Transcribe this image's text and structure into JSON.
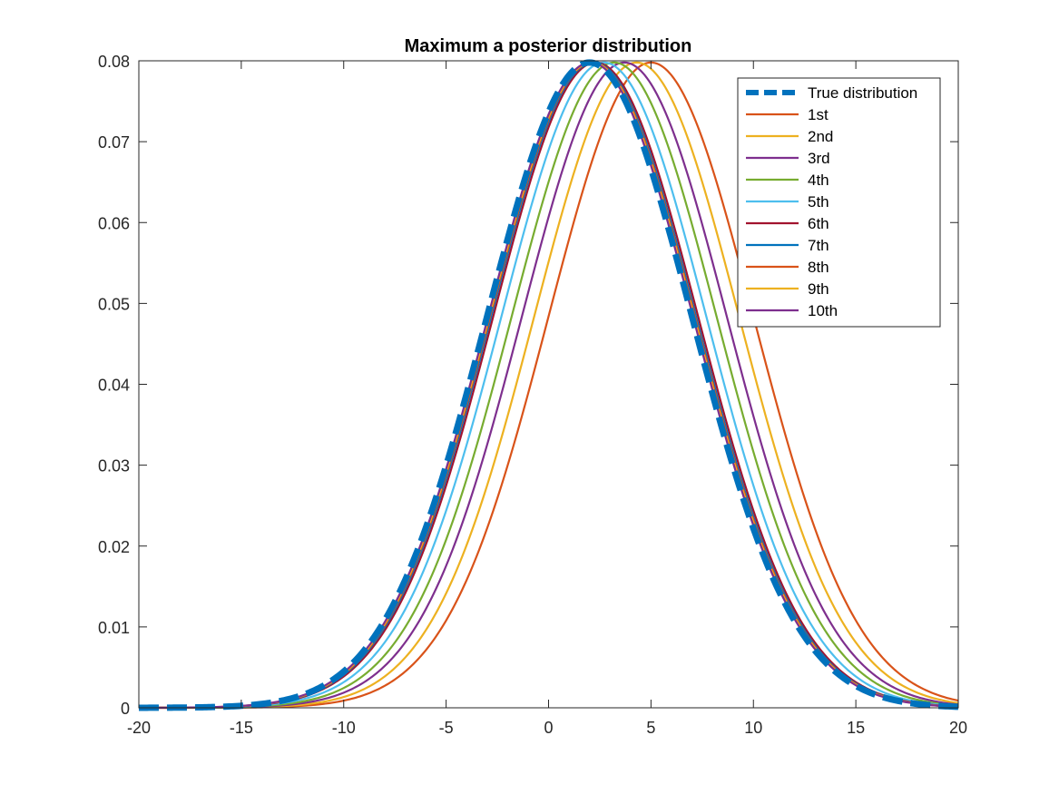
{
  "chart_data": {
    "type": "line",
    "title": "Maximum a posterior distribution",
    "xlabel": "",
    "ylabel": "",
    "xlim": [
      -20,
      20
    ],
    "ylim": [
      0,
      0.08
    ],
    "xticks": [
      -20,
      -15,
      -10,
      -5,
      0,
      5,
      10,
      15,
      20
    ],
    "xtick_labels": [
      "-20",
      "-15",
      "-10",
      "-5",
      "0",
      "5",
      "10",
      "15",
      "20"
    ],
    "yticks": [
      0,
      0.01,
      0.02,
      0.03,
      0.04,
      0.05,
      0.06,
      0.07,
      0.08
    ],
    "ytick_labels": [
      "0",
      "0.01",
      "0.02",
      "0.03",
      "0.04",
      "0.05",
      "0.06",
      "0.07",
      "0.08"
    ],
    "grid": false,
    "legend_position": "top-right",
    "series": [
      {
        "name": "True distribution",
        "color": "#0072BD",
        "style": "dashed",
        "mean": 2.0,
        "std": 5.0
      },
      {
        "name": "1st",
        "color": "#D95319",
        "style": "solid",
        "mean": 5.0,
        "std": 5.0
      },
      {
        "name": "2nd",
        "color": "#EDB120",
        "style": "solid",
        "mean": 4.3,
        "std": 5.0
      },
      {
        "name": "3rd",
        "color": "#7E2F8E",
        "style": "solid",
        "mean": 3.7,
        "std": 5.0
      },
      {
        "name": "4th",
        "color": "#77AC30",
        "style": "solid",
        "mean": 3.2,
        "std": 5.0
      },
      {
        "name": "5th",
        "color": "#4DBEEE",
        "style": "solid",
        "mean": 2.7,
        "std": 5.0
      },
      {
        "name": "6th",
        "color": "#A2142F",
        "style": "solid",
        "mean": 2.3,
        "std": 5.0
      },
      {
        "name": "7th",
        "color": "#0072BD",
        "style": "solid",
        "mean": 2.2,
        "std": 5.0
      },
      {
        "name": "8th",
        "color": "#D95319",
        "style": "solid",
        "mean": 2.15,
        "std": 5.0
      },
      {
        "name": "9th",
        "color": "#EDB120",
        "style": "solid",
        "mean": 2.1,
        "std": 5.0
      },
      {
        "name": "10th",
        "color": "#7E2F8E",
        "style": "solid",
        "mean": 2.05,
        "std": 5.0
      }
    ]
  }
}
